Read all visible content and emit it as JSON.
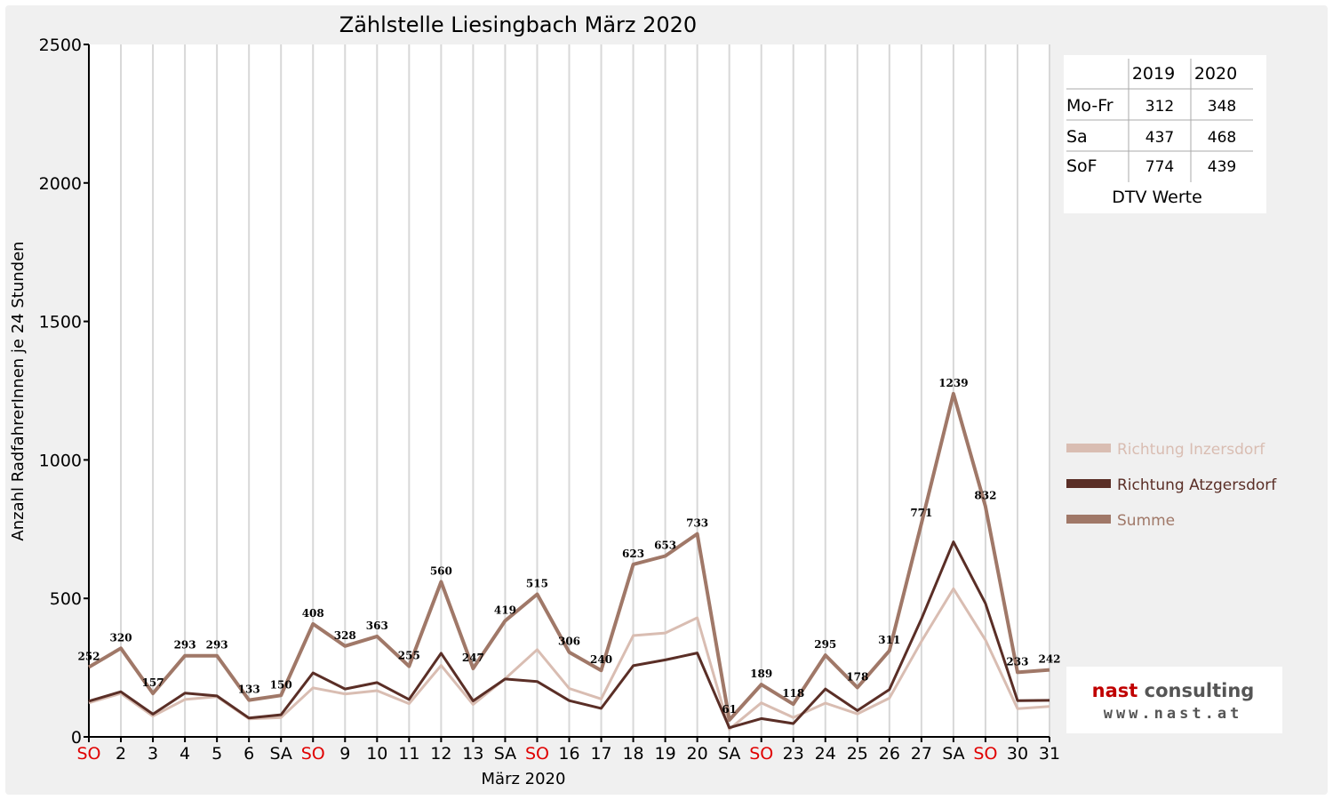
{
  "chart_data": {
    "type": "line",
    "title": "Zählstelle Liesingbach März 2020",
    "xlabel": "März 2020",
    "ylabel": "Anzahl RadfahrerInnen je 24 Stunden",
    "ylim": [
      0,
      2500
    ],
    "yticks": [
      "0",
      "500",
      "1000",
      "1500",
      "2000",
      "2500"
    ],
    "grid": true,
    "legend_position": "right",
    "categories": [
      "SO",
      "2",
      "3",
      "4",
      "5",
      "6",
      "SA",
      "SO",
      "9",
      "10",
      "11",
      "12",
      "13",
      "SA",
      "SO",
      "16",
      "17",
      "18",
      "19",
      "20",
      "SA",
      "SO",
      "23",
      "24",
      "25",
      "26",
      "27",
      "SA",
      "SO",
      "30",
      "31"
    ],
    "highlight_categories": [
      "SO"
    ],
    "series": [
      {
        "name": "Richtung Inzersdorf",
        "color": "#d9bdb2",
        "values": [
          123,
          157,
          75,
          135,
          145,
          65,
          70,
          177,
          155,
          167,
          120,
          258,
          117,
          210,
          315,
          175,
          137,
          366,
          375,
          430,
          28,
          123,
          70,
          122,
          83,
          140,
          345,
          535,
          350,
          102,
          110
        ]
      },
      {
        "name": "Richtung Atzgersdorf",
        "color": "#5a2e26",
        "values": [
          129,
          163,
          82,
          158,
          148,
          68,
          80,
          231,
          173,
          196,
          135,
          302,
          130,
          209,
          200,
          131,
          103,
          257,
          278,
          303,
          33,
          66,
          48,
          173,
          95,
          171,
          426,
          704,
          482,
          131,
          132
        ]
      },
      {
        "name": "Summe",
        "color": "#a07868",
        "values": [
          252,
          320,
          157,
          293,
          293,
          133,
          150,
          408,
          328,
          363,
          255,
          560,
          247,
          419,
          515,
          306,
          240,
          623,
          653,
          733,
          61,
          189,
          118,
          295,
          178,
          311,
          771,
          1239,
          832,
          233,
          242
        ]
      }
    ]
  },
  "dtv_table": {
    "caption": "DTV Werte",
    "columns": [
      "2019",
      "2020"
    ],
    "rows": [
      {
        "label": "Mo-Fr",
        "v2019": "312",
        "v2020": "348"
      },
      {
        "label": "Sa",
        "v2019": "437",
        "v2020": "468"
      },
      {
        "label": "SoF",
        "v2019": "774",
        "v2020": "439"
      }
    ]
  },
  "logo": {
    "name_part1": "nast",
    "name_part2": "consulting",
    "url": "www.nast.at",
    "color_part1": "#c00000",
    "color_part2": "#555555"
  },
  "colors": {
    "holiday_label": "#e00000"
  }
}
